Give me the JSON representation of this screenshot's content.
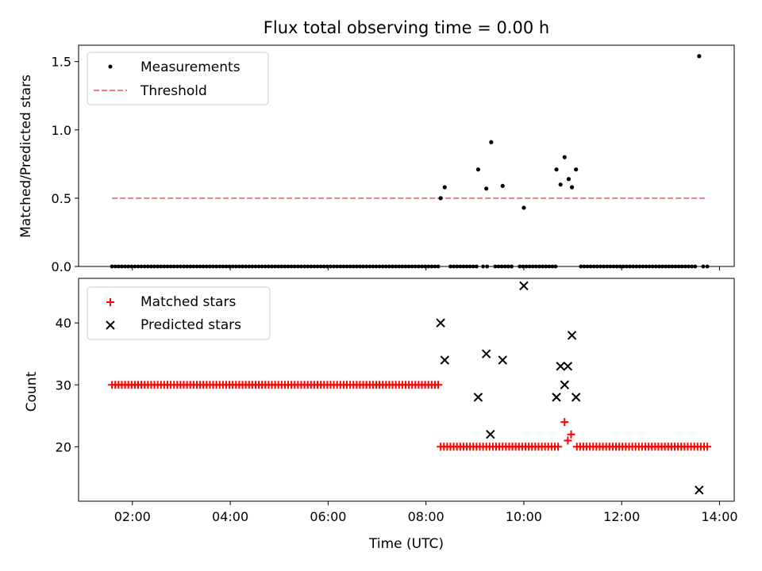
{
  "figure": {
    "title": "Flux total observing time = 0.00 h"
  },
  "chart_data": [
    {
      "type": "scatter",
      "ylabel": "Matched/Predicted stars",
      "xlim_hours": [
        0.9,
        14.3
      ],
      "ylim": [
        0,
        1.62
      ],
      "yticks": [
        0.0,
        0.5,
        1.0,
        1.5
      ],
      "ytick_labels": [
        "0.0",
        "0.5",
        "1.0",
        "1.5"
      ],
      "legend": {
        "placement": "top-left"
      },
      "series": [
        {
          "name": "Measurements",
          "kind": "points",
          "color": "#000000",
          "zero_runs": [
            {
              "start": "01:35",
              "end": "08:15",
              "step_min": 4
            },
            {
              "start": "08:30",
              "end": "09:05",
              "step_min": 4
            },
            {
              "start": "09:10",
              "end": "09:15",
              "step_min": 5
            },
            {
              "start": "09:25",
              "end": "09:45",
              "step_min": 4
            },
            {
              "start": "09:55",
              "end": "10:40",
              "step_min": 4
            },
            {
              "start": "11:10",
              "end": "13:30",
              "step_min": 4
            },
            {
              "start": "13:40",
              "end": "13:45",
              "step_min": 5
            }
          ],
          "points": [
            {
              "t": "08:18",
              "y": 0.5
            },
            {
              "t": "08:23",
              "y": 0.58
            },
            {
              "t": "09:04",
              "y": 0.71
            },
            {
              "t": "09:14",
              "y": 0.57
            },
            {
              "t": "09:20",
              "y": 0.91
            },
            {
              "t": "09:34",
              "y": 0.59
            },
            {
              "t": "10:00",
              "y": 0.43
            },
            {
              "t": "10:40",
              "y": 0.71
            },
            {
              "t": "10:45",
              "y": 0.6
            },
            {
              "t": "10:50",
              "y": 0.8
            },
            {
              "t": "10:55",
              "y": 0.64
            },
            {
              "t": "10:59",
              "y": 0.58
            },
            {
              "t": "11:04",
              "y": 0.71
            },
            {
              "t": "13:35",
              "y": 1.54
            }
          ]
        },
        {
          "name": "Threshold",
          "kind": "dashed-line",
          "color": "#f08080",
          "x": [
            "01:35",
            "13:45"
          ],
          "y": 0.5
        }
      ]
    },
    {
      "type": "scatter",
      "xlabel": "Time (UTC)",
      "ylabel": "Count",
      "xlim_hours": [
        0.9,
        14.3
      ],
      "ylim": [
        11.2,
        47.2
      ],
      "yticks": [
        20,
        30,
        40
      ],
      "ytick_labels": [
        "20",
        "30",
        "40"
      ],
      "xticks": [
        "02:00",
        "04:00",
        "06:00",
        "08:00",
        "10:00",
        "12:00",
        "14:00"
      ],
      "legend": {
        "placement": "top-left"
      },
      "series": [
        {
          "name": "Matched stars",
          "kind": "plus",
          "color": "#ff0000",
          "runs": [
            {
              "start": "01:35",
              "end": "08:15",
              "step_min": 4,
              "y": 30
            },
            {
              "start": "08:18",
              "end": "10:45",
              "step_min": 4,
              "y": 20
            },
            {
              "start": "11:05",
              "end": "13:45",
              "step_min": 4,
              "y": 20
            }
          ],
          "points": [
            {
              "t": "10:50",
              "y": 24
            },
            {
              "t": "10:54",
              "y": 21
            },
            {
              "t": "10:58",
              "y": 22
            }
          ]
        },
        {
          "name": "Predicted stars",
          "kind": "cross",
          "color": "#000000",
          "points": [
            {
              "t": "08:18",
              "y": 40
            },
            {
              "t": "08:23",
              "y": 34
            },
            {
              "t": "09:04",
              "y": 28
            },
            {
              "t": "09:14",
              "y": 35
            },
            {
              "t": "09:19",
              "y": 22
            },
            {
              "t": "09:34",
              "y": 34
            },
            {
              "t": "10:00",
              "y": 46
            },
            {
              "t": "10:40",
              "y": 28
            },
            {
              "t": "10:45",
              "y": 33
            },
            {
              "t": "10:50",
              "y": 30
            },
            {
              "t": "10:54",
              "y": 33
            },
            {
              "t": "10:59",
              "y": 38
            },
            {
              "t": "11:04",
              "y": 28
            },
            {
              "t": "13:35",
              "y": 13
            }
          ]
        }
      ]
    }
  ]
}
